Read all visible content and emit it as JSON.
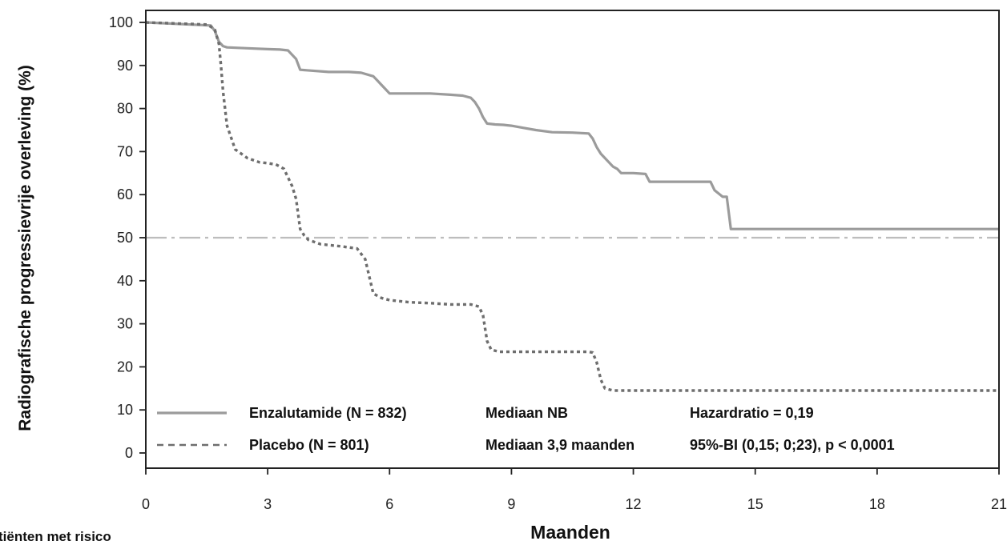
{
  "chart_data": {
    "type": "line",
    "title": "",
    "xlabel": "Maanden",
    "ylabel": "Radiografische progressievrije overleving (%)",
    "xlim": [
      0,
      21
    ],
    "ylim": [
      0,
      100
    ],
    "xticks": [
      0,
      3,
      6,
      9,
      12,
      15,
      18,
      21
    ],
    "yticks": [
      0,
      10,
      20,
      30,
      40,
      50,
      60,
      70,
      80,
      90,
      100
    ],
    "grid": false,
    "legend_position": "bottom-left",
    "colors": {
      "enzalutamide": "#9b9b9b",
      "placebo": "#6e6e6e",
      "median_line": "#bdbdbd",
      "axis": "#222222"
    },
    "reference_line": {
      "y": 50,
      "style": "dash-dot"
    },
    "series": [
      {
        "name": "Enzalutamide (N = 832)",
        "style": "solid",
        "x": [
          0,
          1.6,
          1.7,
          1.8,
          1.9,
          2.0,
          2.5,
          3.0,
          3.3,
          3.5,
          3.7,
          3.8,
          4.5,
          5.0,
          5.3,
          5.6,
          5.7,
          5.8,
          5.9,
          6.0,
          6.5,
          7.0,
          7.5,
          7.8,
          8.0,
          8.1,
          8.2,
          8.3,
          8.4,
          8.6,
          8.8,
          9.0,
          9.3,
          9.6,
          10.0,
          10.5,
          10.9,
          11.0,
          11.1,
          11.2,
          11.3,
          11.4,
          11.5,
          11.6,
          11.7,
          12.0,
          12.3,
          12.4,
          13.0,
          13.5,
          13.9,
          14.0,
          14.2,
          14.3,
          14.4,
          21
        ],
        "y": [
          100,
          99.3,
          98,
          95.5,
          94.5,
          94.2,
          94,
          93.8,
          93.7,
          93.5,
          91.5,
          89,
          88.5,
          88.5,
          88.3,
          87.5,
          86.5,
          85.5,
          84.5,
          83.5,
          83.5,
          83.5,
          83.2,
          83,
          82.5,
          81.5,
          80,
          78,
          76.5,
          76.3,
          76.2,
          76,
          75.5,
          75,
          74.5,
          74.4,
          74.2,
          73,
          71,
          69.5,
          68.5,
          67.5,
          66.5,
          66,
          65,
          65,
          64.8,
          63,
          63,
          63,
          63,
          61,
          59.5,
          59.5,
          52,
          52
        ]
      },
      {
        "name": "Placebo (N = 801)",
        "style": "dotted",
        "x": [
          0,
          1.5,
          1.6,
          1.7,
          1.8,
          1.85,
          1.9,
          2.0,
          2.2,
          2.5,
          2.8,
          3.0,
          3.2,
          3.4,
          3.5,
          3.6,
          3.7,
          3.8,
          3.9,
          4.0,
          4.3,
          4.8,
          5.2,
          5.4,
          5.5,
          5.6,
          5.7,
          5.8,
          6.0,
          6.5,
          7.0,
          7.5,
          8.0,
          8.2,
          8.3,
          8.4,
          8.5,
          8.7,
          9.0,
          9.5,
          10.0,
          10.5,
          10.9,
          11.0,
          11.1,
          11.2,
          11.3,
          11.5,
          12.0,
          13,
          15,
          18,
          21
        ],
        "y": [
          100,
          99.5,
          99,
          98.3,
          95,
          90,
          84,
          76,
          70.5,
          68.5,
          67.5,
          67.3,
          67,
          66,
          64,
          62,
          59,
          52,
          50.5,
          49.5,
          48.5,
          48,
          47.5,
          45,
          41,
          37,
          36.5,
          36,
          35.5,
          35,
          34.8,
          34.5,
          34.5,
          34,
          32,
          26,
          24,
          23.5,
          23.5,
          23.5,
          23.5,
          23.5,
          23.5,
          23.3,
          21,
          17,
          15,
          14.5,
          14.5,
          14.5,
          14.5,
          14.5,
          14.5
        ]
      }
    ]
  },
  "legend": {
    "rows": [
      {
        "series": "Enzalutamide (N = 832)",
        "median": "Mediaan NB",
        "stat": "Hazardratio = 0,19"
      },
      {
        "series": "Placebo (N = 801)",
        "median": "Mediaan 3,9 maanden",
        "stat": "95%-BI (0,15; 0;23), p < 0,0001"
      }
    ]
  },
  "risk_table_title": "tiënten met risico"
}
